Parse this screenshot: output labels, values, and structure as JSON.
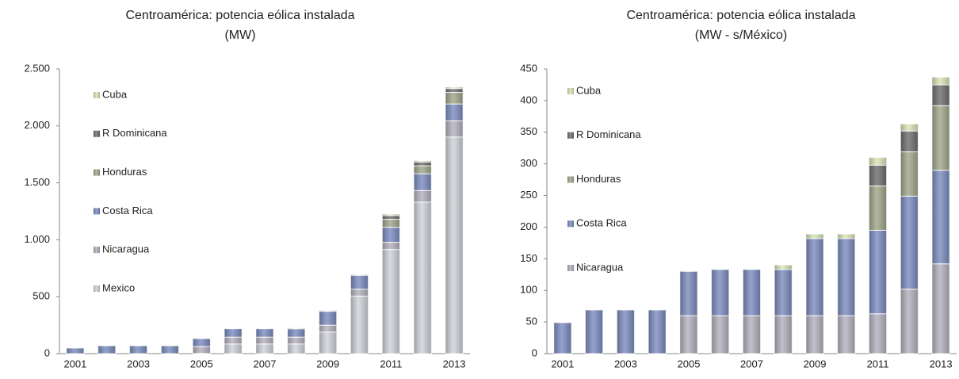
{
  "chart_data": [
    {
      "type": "bar",
      "stacked": true,
      "title": "Centroamérica: potencia eólica instalada",
      "subtitle": "(MW)",
      "categories": [
        "2001",
        null,
        "2003",
        null,
        "2005",
        null,
        "2007",
        null,
        "2009",
        null,
        "2011",
        null,
        "2013"
      ],
      "series": [
        {
          "name": "Mexico",
          "color": "#cfd2d8",
          "values": [
            0,
            0,
            0,
            0,
            2,
            85,
            85,
            85,
            190,
            506,
            915,
            1331,
            1903
          ]
        },
        {
          "name": "Nicaragua",
          "color": "#b3b1be",
          "values": [
            0,
            0,
            0,
            0,
            60,
            60,
            60,
            60,
            60,
            60,
            63,
            102,
            142
          ]
        },
        {
          "name": "Costa Rica",
          "color": "#7b8cc0",
          "values": [
            49,
            69,
            69,
            69,
            70,
            73,
            73,
            73,
            122,
            122,
            132,
            147,
            148
          ]
        },
        {
          "name": "Honduras",
          "color": "#a0a78a",
          "values": [
            0,
            0,
            0,
            0,
            0,
            0,
            0,
            0,
            0,
            0,
            70,
            70,
            102
          ]
        },
        {
          "name": "R Dominicana",
          "color": "#6e6e6e",
          "values": [
            0,
            0,
            0,
            0,
            0,
            0,
            0,
            0,
            0,
            0,
            33,
            33,
            33
          ]
        },
        {
          "name": "Cuba",
          "color": "#d9e5b6",
          "values": [
            0,
            0,
            0,
            0,
            0,
            0,
            0,
            7,
            7,
            7,
            12,
            11,
            12
          ]
        }
      ],
      "ylim": [
        0,
        2500
      ],
      "yticks": [
        0,
        500,
        {
          "value": 1000,
          "label": "1.000"
        },
        {
          "value": 1500,
          "label": "1.500"
        },
        {
          "value": 2000,
          "label": "2.000"
        },
        {
          "value": 2500,
          "label": "2.500"
        }
      ]
    },
    {
      "type": "bar",
      "stacked": true,
      "title": "Centroamérica: potencia eólica instalada",
      "subtitle": "(MW - s/México)",
      "categories": [
        "2001",
        null,
        "2003",
        null,
        "2005",
        null,
        "2007",
        null,
        "2009",
        null,
        "2011",
        null,
        "2013"
      ],
      "series": [
        {
          "name": "Nicaragua",
          "color": "#b3b1be",
          "values": [
            0,
            0,
            0,
            0,
            60,
            60,
            60,
            60,
            60,
            60,
            63,
            102,
            142
          ]
        },
        {
          "name": "Costa Rica",
          "color": "#7b8cc0",
          "values": [
            49,
            69,
            69,
            69,
            70,
            73,
            73,
            73,
            122,
            122,
            132,
            147,
            148
          ]
        },
        {
          "name": "Honduras",
          "color": "#a0a78a",
          "values": [
            0,
            0,
            0,
            0,
            0,
            0,
            0,
            0,
            0,
            0,
            70,
            70,
            102
          ]
        },
        {
          "name": "R Dominicana",
          "color": "#6e6e6e",
          "values": [
            0,
            0,
            0,
            0,
            0,
            0,
            0,
            0,
            0,
            0,
            33,
            33,
            33
          ]
        },
        {
          "name": "Cuba",
          "color": "#d9e5b6",
          "values": [
            0,
            0,
            0,
            0,
            0,
            0,
            0,
            7,
            7,
            7,
            12,
            11,
            12
          ]
        }
      ],
      "ylim": [
        0,
        450
      ],
      "yticks": [
        0,
        50,
        100,
        150,
        200,
        250,
        300,
        350,
        400,
        450
      ]
    }
  ]
}
